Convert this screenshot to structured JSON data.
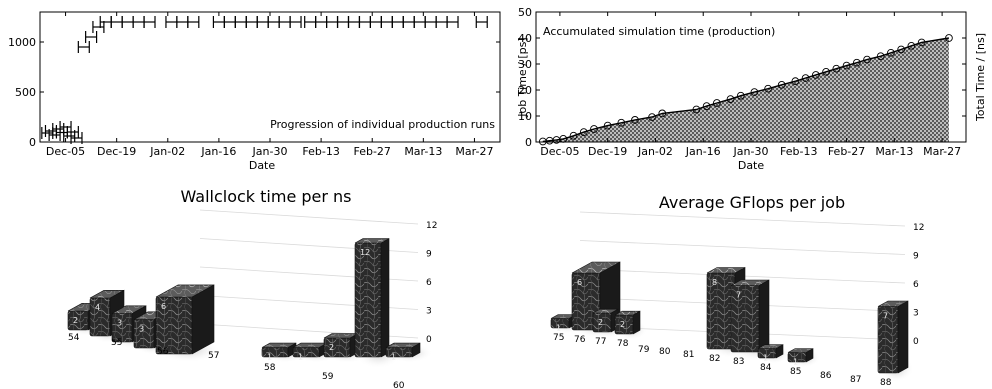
{
  "chart_data": [
    {
      "type": "scatter",
      "title": "",
      "annotation": "Progression of individual production runs",
      "xlabel": "Date",
      "ylabel": "Job Time / [ps]",
      "ylabel_side": "right",
      "xlim": [
        "2005-11-28",
        "2006-04-03"
      ],
      "ylim": [
        0,
        1300
      ],
      "yticks": [
        0,
        500,
        1000
      ],
      "xticks": [
        "Dec-05",
        "Dec-19",
        "Jan-02",
        "Jan-16",
        "Jan-30",
        "Feb-13",
        "Feb-27",
        "Mar-13",
        "Mar-27"
      ],
      "xtick_dates": [
        "2005-12-05",
        "2005-12-19",
        "2006-01-02",
        "2006-01-16",
        "2006-01-30",
        "2006-02-13",
        "2006-02-27",
        "2006-03-13",
        "2006-03-27"
      ],
      "grid": false,
      "error_bars": "horizontal",
      "points": [
        {
          "date": "2005-11-30",
          "value": 90
        },
        {
          "date": "2005-12-01",
          "value": 110
        },
        {
          "date": "2005-12-02",
          "value": 70
        },
        {
          "date": "2005-12-03",
          "value": 130
        },
        {
          "date": "2005-12-04",
          "value": 95
        },
        {
          "date": "2005-12-05",
          "value": 150
        },
        {
          "date": "2005-12-06",
          "value": 60
        },
        {
          "date": "2005-12-07",
          "value": 100
        },
        {
          "date": "2005-12-08",
          "value": 40
        },
        {
          "date": "2005-12-10",
          "value": 950
        },
        {
          "date": "2005-12-12",
          "value": 1050
        },
        {
          "date": "2005-12-14",
          "value": 1150
        },
        {
          "date": "2005-12-16",
          "value": 1200
        },
        {
          "date": "2005-12-19",
          "value": 1200
        },
        {
          "date": "2005-12-22",
          "value": 1200
        },
        {
          "date": "2005-12-25",
          "value": 1200
        },
        {
          "date": "2005-12-28",
          "value": 1200
        },
        {
          "date": "2006-01-03",
          "value": 1200
        },
        {
          "date": "2006-01-06",
          "value": 1200
        },
        {
          "date": "2006-01-09",
          "value": 1200
        },
        {
          "date": "2006-01-16",
          "value": 1200
        },
        {
          "date": "2006-01-19",
          "value": 1200
        },
        {
          "date": "2006-01-22",
          "value": 1200
        },
        {
          "date": "2006-01-25",
          "value": 1200
        },
        {
          "date": "2006-01-28",
          "value": 1200
        },
        {
          "date": "2006-01-31",
          "value": 1200
        },
        {
          "date": "2006-02-03",
          "value": 1200
        },
        {
          "date": "2006-02-06",
          "value": 1200
        },
        {
          "date": "2006-02-10",
          "value": 1200
        },
        {
          "date": "2006-02-13",
          "value": 1200
        },
        {
          "date": "2006-02-16",
          "value": 1200
        },
        {
          "date": "2006-02-19",
          "value": 1200
        },
        {
          "date": "2006-02-22",
          "value": 1200
        },
        {
          "date": "2006-02-25",
          "value": 1200
        },
        {
          "date": "2006-02-28",
          "value": 1200
        },
        {
          "date": "2006-03-03",
          "value": 1200
        },
        {
          "date": "2006-03-06",
          "value": 1200
        },
        {
          "date": "2006-03-09",
          "value": 1200
        },
        {
          "date": "2006-03-12",
          "value": 1200
        },
        {
          "date": "2006-03-15",
          "value": 1200
        },
        {
          "date": "2006-03-18",
          "value": 1200
        },
        {
          "date": "2006-03-21",
          "value": 1200
        },
        {
          "date": "2006-03-29",
          "value": 1200
        }
      ],
      "error_half_width_days": 1.5
    },
    {
      "type": "area",
      "annotation": "Accumulated simulation time (production)",
      "xlabel": "Date",
      "ylabel": "Total Time / [ns]",
      "ylabel_side": "right",
      "xlim": [
        "2005-11-28",
        "2006-04-03"
      ],
      "ylim": [
        0,
        50
      ],
      "yticks": [
        0,
        10,
        20,
        30,
        40,
        50
      ],
      "xticks": [
        "Dec-05",
        "Dec-19",
        "Jan-02",
        "Jan-16",
        "Jan-30",
        "Feb-13",
        "Feb-27",
        "Mar-13",
        "Mar-27"
      ],
      "xtick_dates": [
        "2005-12-05",
        "2005-12-19",
        "2006-01-02",
        "2006-01-16",
        "2006-01-30",
        "2006-02-13",
        "2006-02-27",
        "2006-03-13",
        "2006-03-27"
      ],
      "grid": false,
      "fill": "checkered",
      "markers": "circle",
      "points": [
        {
          "date": "2005-11-30",
          "value": 0.2
        },
        {
          "date": "2005-12-02",
          "value": 0.5
        },
        {
          "date": "2005-12-04",
          "value": 0.8
        },
        {
          "date": "2005-12-06",
          "value": 1.2
        },
        {
          "date": "2005-12-09",
          "value": 2.4
        },
        {
          "date": "2005-12-12",
          "value": 3.8
        },
        {
          "date": "2005-12-15",
          "value": 5.0
        },
        {
          "date": "2005-12-19",
          "value": 6.3
        },
        {
          "date": "2005-12-23",
          "value": 7.4
        },
        {
          "date": "2005-12-27",
          "value": 8.5
        },
        {
          "date": "2006-01-01",
          "value": 9.6
        },
        {
          "date": "2006-01-04",
          "value": 11.0
        },
        {
          "date": "2006-01-14",
          "value": 12.5
        },
        {
          "date": "2006-01-17",
          "value": 13.8
        },
        {
          "date": "2006-01-20",
          "value": 15.0
        },
        {
          "date": "2006-01-24",
          "value": 16.5
        },
        {
          "date": "2006-01-27",
          "value": 17.8
        },
        {
          "date": "2006-01-31",
          "value": 19.2
        },
        {
          "date": "2006-02-04",
          "value": 20.5
        },
        {
          "date": "2006-02-08",
          "value": 22.0
        },
        {
          "date": "2006-02-12",
          "value": 23.4
        },
        {
          "date": "2006-02-15",
          "value": 24.6
        },
        {
          "date": "2006-02-18",
          "value": 25.8
        },
        {
          "date": "2006-02-21",
          "value": 27.0
        },
        {
          "date": "2006-02-24",
          "value": 28.2
        },
        {
          "date": "2006-02-27",
          "value": 29.4
        },
        {
          "date": "2006-03-02",
          "value": 30.5
        },
        {
          "date": "2006-03-05",
          "value": 31.7
        },
        {
          "date": "2006-03-09",
          "value": 33.0
        },
        {
          "date": "2006-03-12",
          "value": 34.3
        },
        {
          "date": "2006-03-15",
          "value": 35.6
        },
        {
          "date": "2006-03-18",
          "value": 37.0
        },
        {
          "date": "2006-03-21",
          "value": 38.3
        },
        {
          "date": "2006-03-29",
          "value": 40.0
        }
      ]
    },
    {
      "type": "bar",
      "style": "3d",
      "title": "Wallclock time per ns",
      "zticks": [
        0,
        3,
        6,
        9,
        12
      ],
      "zlim": [
        0,
        12
      ],
      "categories": [
        "54",
        "55",
        "56",
        "57",
        "58",
        "59",
        "60"
      ],
      "rows": 2,
      "bars": [
        {
          "row": 0,
          "slot": 0,
          "value": 2
        },
        {
          "row": 0,
          "slot": 1,
          "value": 4
        },
        {
          "row": 0,
          "slot": 2,
          "value": 3
        },
        {
          "row": 0,
          "slot": 3,
          "value": 3
        },
        {
          "row": 0,
          "slot": 4,
          "value": 6
        },
        {
          "row": 1,
          "slot": 9,
          "value": 1
        },
        {
          "row": 1,
          "slot": 10,
          "value": 1
        },
        {
          "row": 1,
          "slot": 11,
          "value": 2
        },
        {
          "row": 1,
          "slot": 12,
          "value": 12
        },
        {
          "row": 1,
          "slot": 13,
          "value": 1
        }
      ]
    },
    {
      "type": "bar",
      "style": "3d",
      "title": "Average GFlops per job",
      "zticks": [
        0,
        3,
        6,
        9,
        12
      ],
      "zlim": [
        0,
        12
      ],
      "categories": [
        "75",
        "76",
        "77",
        "78",
        "79",
        "80",
        "81",
        "82",
        "83",
        "84",
        "85",
        "86",
        "87",
        "88"
      ],
      "bars": [
        {
          "category": "75",
          "value": 1
        },
        {
          "category": "76",
          "value": 6
        },
        {
          "category": "77",
          "value": 2
        },
        {
          "category": "78",
          "value": 2
        },
        {
          "category": "82",
          "value": 8
        },
        {
          "category": "83",
          "value": 7
        },
        {
          "category": "84",
          "value": 1
        },
        {
          "category": "85",
          "value": 1
        },
        {
          "category": "88",
          "value": 7
        }
      ]
    }
  ]
}
